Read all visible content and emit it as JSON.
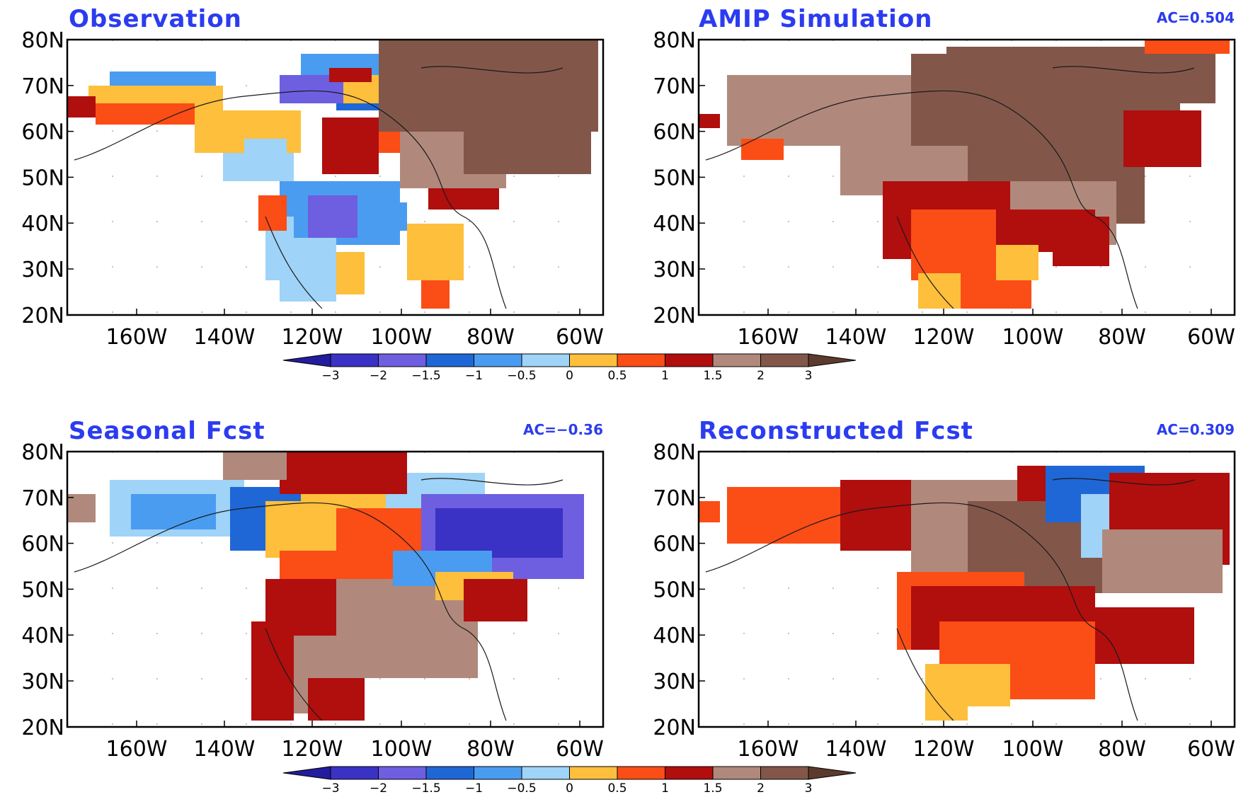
{
  "panels": [
    {
      "title": "Observation",
      "ac": ""
    },
    {
      "title": "AMIP  Simulation",
      "ac": "AC=0.504"
    },
    {
      "title": "Seasonal  Fcst",
      "ac": "AC=−0.36"
    },
    {
      "title": "Reconstructed  Fcst",
      "ac": "AC=0.309"
    }
  ],
  "axes": {
    "lat_labels": [
      "80N",
      "70N",
      "60N",
      "50N",
      "40N",
      "30N",
      "20N"
    ],
    "lon_labels": [
      "160W",
      "140W",
      "120W",
      "100W",
      "80W",
      "60W"
    ]
  },
  "colorbar": {
    "labels": [
      "−3",
      "−2",
      "−1.5",
      "−1",
      "−0.5",
      "0",
      "0.5",
      "1",
      "1.5",
      "2",
      "3"
    ],
    "colors": [
      "#231c9e",
      "#3a32c4",
      "#6e5ee0",
      "#1f67d6",
      "#4a9cf0",
      "#9fd3f7",
      "#fdbf3c",
      "#fb4d16",
      "#b10e0e",
      "#b0897c",
      "#82574a",
      "#5c3a2e"
    ]
  }
}
